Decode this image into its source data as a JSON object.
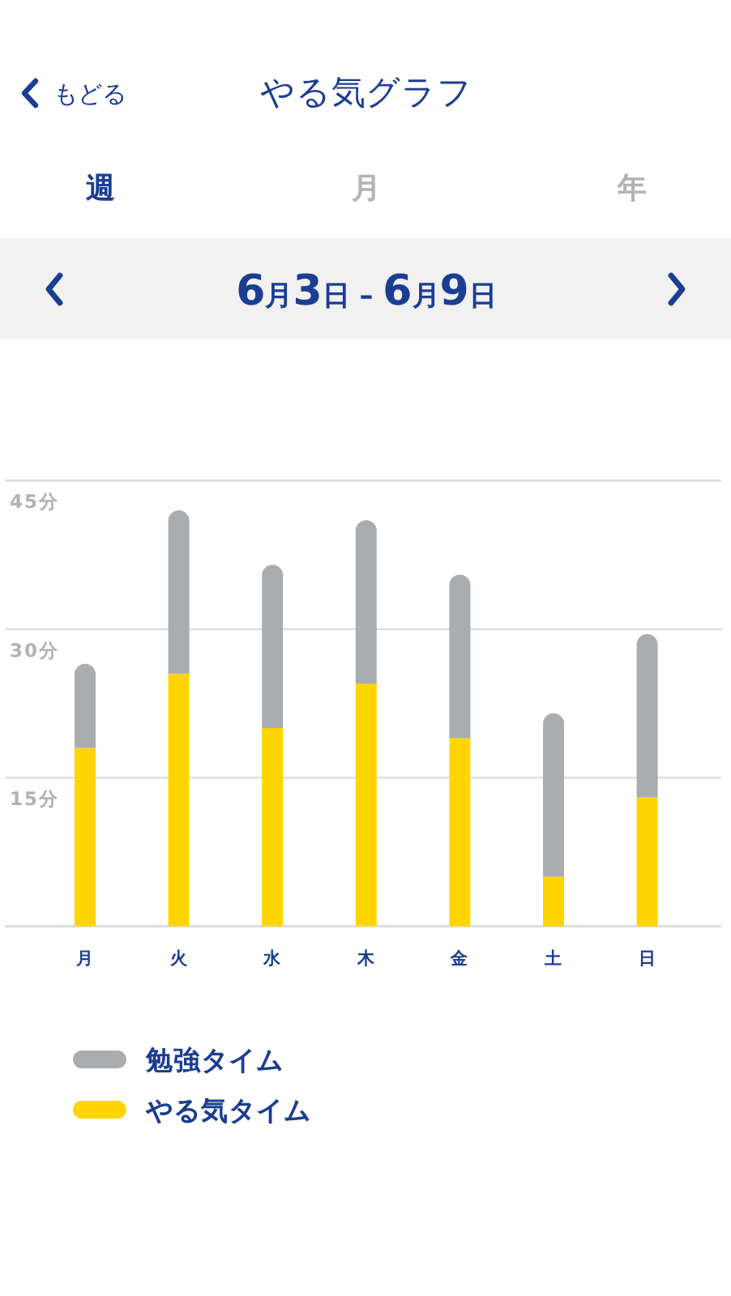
{
  "chart_data": {
    "type": "bar",
    "title": "やる気グラフ",
    "subtitle": "6月3日 – 6月9日",
    "annotations": [
      "もどる",
      "週",
      "月",
      "年"
    ],
    "categories": [
      "月",
      "火",
      "水",
      "木",
      "金",
      "土",
      "日"
    ],
    "series": [
      {
        "name": "やる気タイム",
        "color": "#ffd500",
        "values": [
          18,
          25.5,
          20,
          24.5,
          19,
          5,
          13
        ]
      },
      {
        "name": "勉強タイム",
        "color": "#a9adb0",
        "values": [
          8.5,
          16.5,
          16.5,
          16.5,
          16.5,
          16.5,
          16.5
        ]
      }
    ],
    "stacked": true,
    "ylim": [
      0,
      45
    ],
    "yticks": [
      {
        "value": 15,
        "label": "15分"
      },
      {
        "value": 30,
        "label": "30分"
      },
      {
        "value": 45,
        "label": "45分"
      }
    ],
    "grid": "y",
    "legend": "bottom left"
  }
}
